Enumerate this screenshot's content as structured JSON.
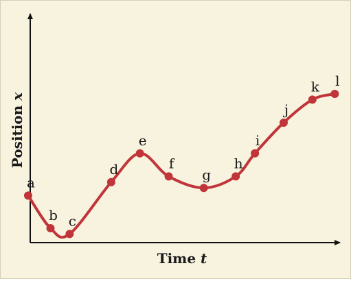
{
  "chart_data": {
    "type": "line",
    "title": "",
    "xlabel": "Time",
    "xlabel_var": "t",
    "ylabel": "Position",
    "ylabel_var": "x",
    "x_ticks": [],
    "y_ticks": [],
    "xlim": [
      0,
      100
    ],
    "ylim": [
      0,
      100
    ],
    "grid": false,
    "legend": "none",
    "colors": {
      "curve": "#c0353a",
      "point": "#c0353a",
      "axis": "#111111",
      "background": "#f8f3df"
    },
    "points": [
      {
        "label": "a",
        "x": 3,
        "y": 32
      },
      {
        "label": "b",
        "x": 10,
        "y": 15
      },
      {
        "label": "c",
        "x": 16,
        "y": 12
      },
      {
        "label": "d",
        "x": 29,
        "y": 39
      },
      {
        "label": "e",
        "x": 38,
        "y": 54
      },
      {
        "label": "f",
        "x": 47,
        "y": 42
      },
      {
        "label": "g",
        "x": 58,
        "y": 36
      },
      {
        "label": "h",
        "x": 68,
        "y": 42
      },
      {
        "label": "i",
        "x": 74,
        "y": 54
      },
      {
        "label": "j",
        "x": 83,
        "y": 70
      },
      {
        "label": "k",
        "x": 92,
        "y": 82
      },
      {
        "label": "l",
        "x": 99,
        "y": 85
      }
    ]
  }
}
